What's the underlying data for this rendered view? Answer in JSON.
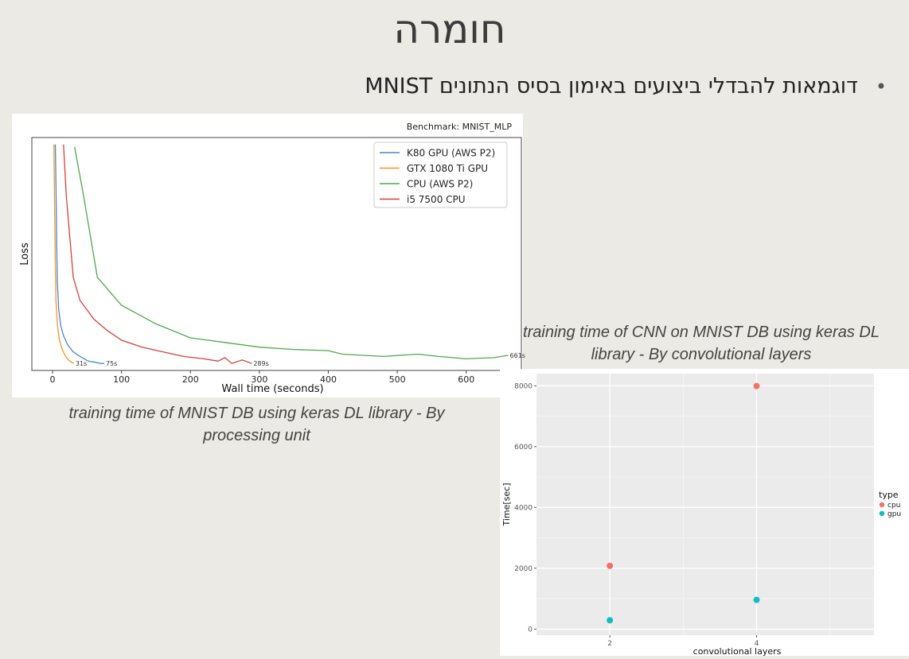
{
  "slide": {
    "title": "חומרה",
    "bullet": "דוגמאות להבדלי ביצועים באימון בסיס הנתונים MNIST",
    "caption_left": "training time of MNIST DB using keras DL library - By processing unit",
    "caption_right": "training time of CNN on MNIST DB using keras DL library - By convolutional layers"
  },
  "chart_data": [
    {
      "type": "line",
      "title": "Benchmark: MNIST_MLP",
      "xlabel": "Wall time (seconds)",
      "ylabel": "Loss",
      "xlim": [
        -30,
        680
      ],
      "ylim": [
        0,
        1
      ],
      "xticks": [
        0,
        100,
        200,
        300,
        400,
        500,
        600
      ],
      "grid": false,
      "legend": "top-right",
      "series": [
        {
          "name": "K80 GPU (AWS P2)",
          "color": "#4c86c6",
          "end_label": "75s",
          "x": [
            4,
            5,
            6,
            7,
            9,
            12,
            16,
            22,
            30,
            40,
            52,
            62,
            70,
            75
          ],
          "y": [
            0.97,
            0.8,
            0.55,
            0.38,
            0.26,
            0.19,
            0.15,
            0.11,
            0.08,
            0.06,
            0.04,
            0.035,
            0.03,
            0.03
          ]
        },
        {
          "name": "GTX 1080 Ti GPU",
          "color": "#f5952a",
          "end_label": "31s",
          "x": [
            2,
            3,
            4,
            5,
            7,
            10,
            14,
            19,
            25,
            31
          ],
          "y": [
            0.97,
            0.7,
            0.45,
            0.3,
            0.2,
            0.13,
            0.09,
            0.06,
            0.04,
            0.03
          ]
        },
        {
          "name": "CPU (AWS P2)",
          "color": "#4daa49",
          "end_label": "661s",
          "x": [
            32,
            45,
            65,
            100,
            150,
            200,
            250,
            300,
            350,
            400,
            420,
            480,
            530,
            560,
            600,
            640,
            661
          ],
          "y": [
            0.96,
            0.75,
            0.4,
            0.28,
            0.2,
            0.14,
            0.12,
            0.1,
            0.09,
            0.085,
            0.07,
            0.06,
            0.07,
            0.06,
            0.05,
            0.055,
            0.065
          ]
        },
        {
          "name": "i5 7500 CPU",
          "color": "#d8403a",
          "end_label": "289s",
          "x": [
            16,
            20,
            30,
            40,
            60,
            80,
            100,
            130,
            160,
            190,
            220,
            240,
            250,
            260,
            275,
            289
          ],
          "y": [
            0.97,
            0.75,
            0.4,
            0.3,
            0.22,
            0.17,
            0.13,
            0.1,
            0.08,
            0.06,
            0.05,
            0.04,
            0.055,
            0.03,
            0.045,
            0.03
          ]
        }
      ]
    },
    {
      "type": "scatter",
      "title": "",
      "xlabel": "convolutional layers",
      "ylabel": "Time[sec]",
      "xlim": [
        1,
        5.6
      ],
      "ylim": [
        -200,
        8400
      ],
      "xticks": [
        2,
        4
      ],
      "yticks": [
        0,
        2000,
        4000,
        6000,
        8000
      ],
      "grid": true,
      "legend": "right",
      "legend_title": "type",
      "series": [
        {
          "name": "cpu",
          "color": "#f0736b",
          "x": [
            2,
            4
          ],
          "y": [
            2080,
            7990
          ]
        },
        {
          "name": "gpu",
          "color": "#12bcc1",
          "x": [
            2,
            4
          ],
          "y": [
            290,
            960
          ]
        }
      ]
    }
  ]
}
